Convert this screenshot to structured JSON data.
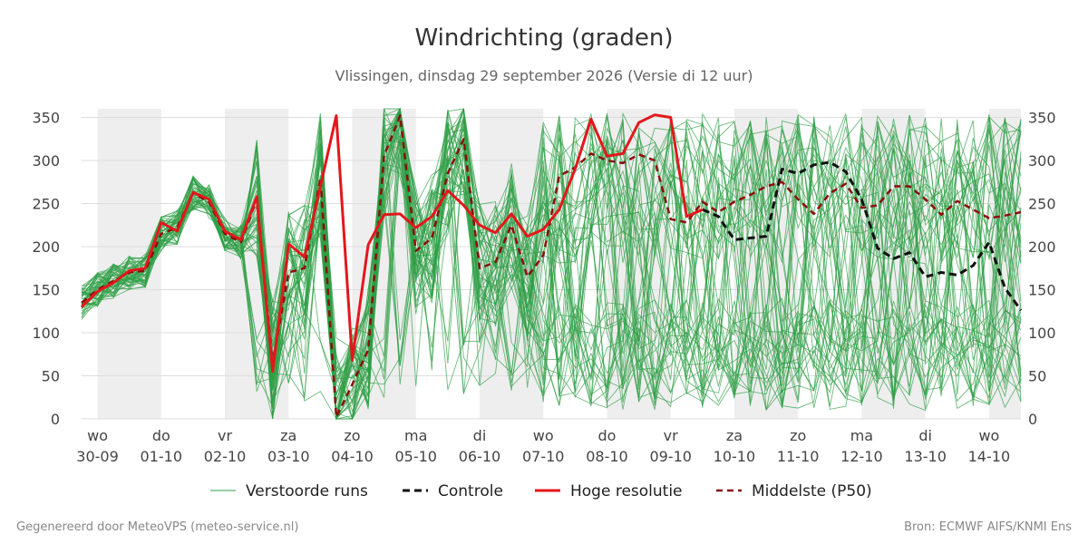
{
  "chart_data": {
    "type": "line",
    "title": "Windrichting (graden)",
    "subtitle": "Vlissingen, dinsdag 29 september 2026 (Versie di 12 uur)",
    "ylim": [
      0,
      360
    ],
    "yticks": [
      0,
      50,
      100,
      150,
      200,
      250,
      300,
      350
    ],
    "xlim": [
      -0.25,
      14.5
    ],
    "x_ticks": [
      {
        "day": "wo",
        "date": "30-09"
      },
      {
        "day": "do",
        "date": "01-10"
      },
      {
        "day": "vr",
        "date": "02-10"
      },
      {
        "day": "za",
        "date": "03-10"
      },
      {
        "day": "zo",
        "date": "04-10"
      },
      {
        "day": "ma",
        "date": "05-10"
      },
      {
        "day": "di",
        "date": "06-10"
      },
      {
        "day": "wo",
        "date": "07-10"
      },
      {
        "day": "do",
        "date": "08-10"
      },
      {
        "day": "vr",
        "date": "09-10"
      },
      {
        "day": "za",
        "date": "10-10"
      },
      {
        "day": "zo",
        "date": "11-10"
      },
      {
        "day": "ma",
        "date": "12-10"
      },
      {
        "day": "di",
        "date": "13-10"
      },
      {
        "day": "wo",
        "date": "14-10"
      }
    ],
    "shaded_bands": [
      [
        0,
        1
      ],
      [
        2,
        3
      ],
      [
        4,
        5
      ],
      [
        6,
        7
      ],
      [
        8,
        9
      ],
      [
        10,
        11
      ],
      [
        12,
        13
      ],
      [
        14,
        14.5
      ]
    ],
    "grid": true,
    "legend_position": "bottom",
    "colors": {
      "ensemble": "#2e9e44",
      "control": "#111111",
      "high_res": "#e3171b",
      "median": "#8b0d0d",
      "band": "#eeeeee",
      "grid": "#dddddd"
    },
    "series": [
      {
        "name": "Hoge resolutie",
        "style": "solid",
        "x": [
          -0.25,
          0,
          0.25,
          0.5,
          0.75,
          1,
          1.25,
          1.5,
          1.75,
          2,
          2.25,
          2.5,
          2.75,
          3,
          3.25,
          3.5,
          3.75,
          4,
          4.25,
          4.5,
          4.75,
          5,
          5.25,
          5.5,
          5.75,
          6,
          6.25,
          6.5,
          6.75,
          7,
          7.25,
          7.5,
          7.75,
          8,
          8.25,
          8.5,
          8.75,
          9,
          9.25,
          9.5
        ],
        "values": [
          130,
          148,
          158,
          172,
          175,
          228,
          218,
          263,
          255,
          218,
          208,
          258,
          55,
          203,
          188,
          270,
          352,
          68,
          202,
          237,
          238,
          222,
          235,
          265,
          248,
          225,
          216,
          238,
          212,
          220,
          243,
          290,
          348,
          305,
          308,
          344,
          353,
          350,
          235,
          243
        ]
      },
      {
        "name": "Controle",
        "style": "dashed",
        "x": [
          9.5,
          9.75,
          10,
          10.25,
          10.5,
          10.75,
          11,
          11.25,
          11.5,
          11.75,
          12,
          12.25,
          12.5,
          12.75,
          13,
          13.25,
          13.5,
          13.75,
          14,
          14.25,
          14.5
        ],
        "values": [
          243,
          235,
          208,
          210,
          212,
          290,
          285,
          295,
          298,
          287,
          255,
          198,
          186,
          193,
          165,
          170,
          167,
          178,
          205,
          152,
          126
        ]
      },
      {
        "name": "Middelste (P50)",
        "style": "dashed",
        "x": [
          -0.25,
          0,
          0.25,
          0.5,
          0.75,
          1,
          1.25,
          1.5,
          1.75,
          2,
          2.25,
          2.5,
          2.75,
          3,
          3.25,
          3.5,
          3.75,
          4,
          4.25,
          4.5,
          4.75,
          5,
          5.25,
          5.5,
          5.75,
          6,
          6.25,
          6.5,
          6.75,
          7,
          7.25,
          7.5,
          7.75,
          8,
          8.25,
          8.5,
          8.75,
          9,
          9.25,
          9.5,
          9.75,
          10,
          10.25,
          10.5,
          10.75,
          11,
          11.25,
          11.5,
          11.75,
          12,
          12.25,
          12.5,
          12.75,
          13,
          13.25,
          13.5,
          13.75,
          14,
          14.25,
          14.5
        ],
        "values": [
          135,
          150,
          160,
          170,
          172,
          215,
          222,
          262,
          252,
          215,
          205,
          255,
          65,
          170,
          175,
          280,
          2,
          40,
          80,
          305,
          352,
          195,
          210,
          285,
          325,
          175,
          182,
          225,
          165,
          190,
          282,
          292,
          308,
          300,
          297,
          307,
          300,
          232,
          228,
          252,
          240,
          252,
          260,
          270,
          275,
          255,
          238,
          262,
          273,
          245,
          248,
          270,
          270,
          255,
          237,
          253,
          243,
          233,
          236,
          240
        ]
      }
    ],
    "legend": [
      {
        "label": "Verstoorde runs",
        "key": "ensemble"
      },
      {
        "label": "Controle",
        "key": "control"
      },
      {
        "label": "Hoge resolutie",
        "key": "high_res"
      },
      {
        "label": "Middelste (P50)",
        "key": "median"
      }
    ],
    "ensemble": {
      "name": "Verstoorde runs",
      "member_count": 50,
      "x_start": -0.25,
      "x_end": 14.5,
      "x_step": 0.25,
      "chaos_start": 7.0
    }
  },
  "footer": {
    "left": "Gegenereerd door MeteoVPS (meteo-service.nl)",
    "right": "Bron: ECMWF AIFS/KNMI Ens"
  }
}
